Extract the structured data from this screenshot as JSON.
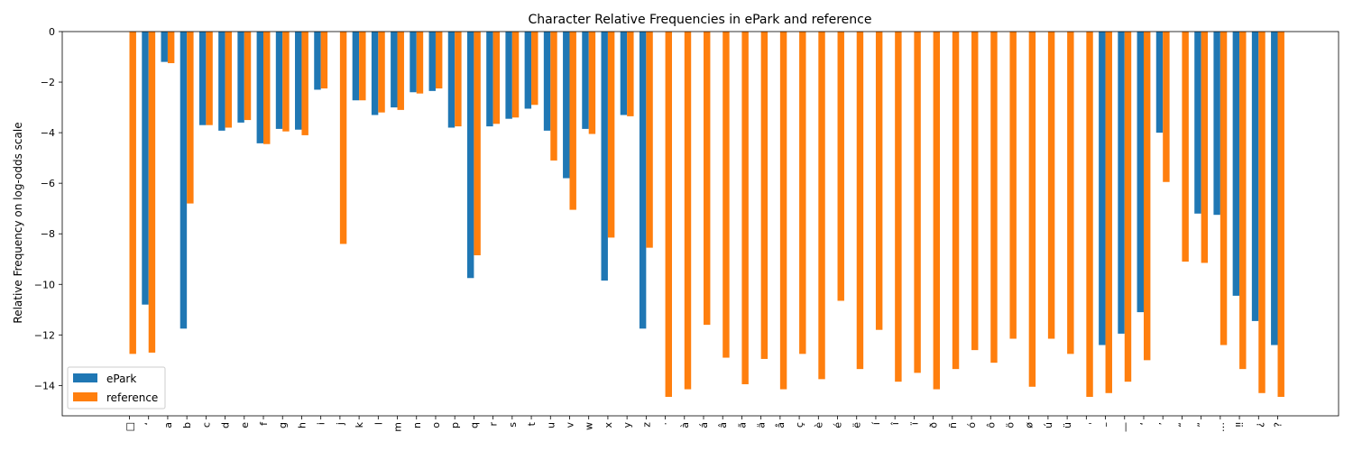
{
  "chart_data": {
    "type": "bar",
    "title": "Character Relative Frequencies in ePark and reference",
    "xlabel": "",
    "ylabel": "Relative Frequency on log-odds scale",
    "ylim": [
      -15.2,
      0
    ],
    "yticks": [
      0,
      -2,
      -4,
      -6,
      -8,
      -10,
      -12,
      -14
    ],
    "grid": false,
    "legend_position": "lower-left",
    "categories": [
      "□",
      "‘",
      "a",
      "b",
      "c",
      "d",
      "e",
      "f",
      "g",
      "h",
      "i",
      "j",
      "k",
      "l",
      "m",
      "n",
      "o",
      "p",
      "q",
      "r",
      "s",
      "t",
      "u",
      "v",
      "w",
      "x",
      "y",
      "z",
      "·",
      "à",
      "á",
      "â",
      "ã",
      "ä",
      "å",
      "ç",
      "è",
      "é",
      "ë",
      "í",
      "î",
      "ï",
      "ð",
      "ñ",
      "ó",
      "ô",
      "ö",
      "ø",
      "ú",
      "ü",
      "ˌ",
      "–",
      "—",
      "‘",
      "’",
      "“",
      "”",
      "…",
      "‼",
      "¿",
      "?"
    ],
    "series": [
      {
        "name": "ePark",
        "color": "#1f77b4",
        "values": [
          null,
          -10.8,
          -1.2,
          -11.75,
          -3.7,
          -3.92,
          -3.6,
          -4.42,
          -3.85,
          -3.88,
          -2.3,
          null,
          -2.72,
          -3.3,
          -3.0,
          -2.4,
          -2.35,
          -3.8,
          -9.75,
          -3.75,
          -3.45,
          -3.05,
          -3.92,
          -5.8,
          -3.85,
          -9.85,
          -3.3,
          -11.75,
          null,
          null,
          null,
          null,
          null,
          null,
          null,
          null,
          null,
          null,
          null,
          null,
          null,
          null,
          null,
          null,
          null,
          null,
          null,
          null,
          null,
          null,
          null,
          -12.4,
          -11.95,
          -11.1,
          -4.0,
          null,
          -7.2,
          -7.25,
          -10.45,
          -11.45,
          -12.4
        ]
      },
      {
        "name": "reference",
        "color": "#ff7f0e",
        "values": [
          -12.75,
          -12.7,
          -1.25,
          -6.8,
          -3.7,
          -3.8,
          -3.5,
          -4.45,
          -3.95,
          -4.1,
          -2.25,
          -8.4,
          -2.72,
          -3.2,
          -3.1,
          -2.45,
          -2.25,
          -3.75,
          -8.85,
          -3.65,
          -3.4,
          -2.9,
          -5.1,
          -7.05,
          -4.05,
          -8.15,
          -3.35,
          -8.55,
          -14.45,
          -14.15,
          -11.6,
          -12.9,
          -13.95,
          -12.95,
          -14.15,
          -12.75,
          -13.75,
          -10.65,
          -13.35,
          -11.8,
          -13.85,
          -13.5,
          -14.15,
          -13.35,
          -12.6,
          -13.1,
          -12.15,
          -14.05,
          -12.15,
          -12.75,
          -14.45,
          -14.3,
          -13.85,
          -13.0,
          -5.95,
          -9.1,
          -9.15,
          -12.4,
          -13.35,
          -14.3,
          -14.45
        ]
      }
    ]
  }
}
